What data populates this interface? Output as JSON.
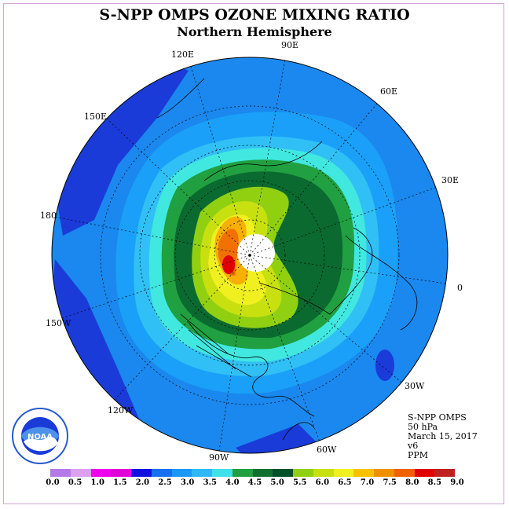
{
  "title": "S-NPP OMPS OZONE MIXING RATIO",
  "subtitle": "Northern Hemisphere",
  "logo_text": "NOAA",
  "info": {
    "line1": "S-NPP OMPS",
    "line2": "50 hPa",
    "line3": "March 15, 2017",
    "line4": "v6",
    "line5": "PPM"
  },
  "longitude_labels": {
    "lon_90e": "90E",
    "lon_60e": "60E",
    "lon_30e": "30E",
    "lon_0": "0",
    "lon_120e": "120E",
    "lon_150e": "150E",
    "lon_180": "180",
    "lon_150w": "150W",
    "lon_120w": "120W",
    "lon_90w": "90W",
    "lon_60w": "60W",
    "lon_30w": "30W"
  },
  "colorbar": {
    "colors": [
      "#b57ae8",
      "#dda0f0",
      "#ee00ee",
      "#e000d8",
      "#1010e0",
      "#1570f0",
      "#1a98f5",
      "#30b8f5",
      "#40e0e8",
      "#20a040",
      "#107030",
      "#00502a",
      "#90d010",
      "#c8e010",
      "#f0f020",
      "#f8c000",
      "#f09000",
      "#f06000",
      "#e00000",
      "#c02020",
      "#8b5a3c"
    ],
    "tick_labels": [
      "0.0",
      "0.5",
      "1.0",
      "1.5",
      "2.0",
      "2.5",
      "3.0",
      "3.5",
      "4.0",
      "4.5",
      "5.0",
      "5.5",
      "6.0",
      "6.5",
      "7.0",
      "7.5",
      "8.0",
      "8.5",
      "9.0"
    ]
  },
  "map": {
    "background_color": "#1a88ee",
    "outer_color": "#1a3bd8",
    "polar_gap_color": "#ffffff"
  }
}
